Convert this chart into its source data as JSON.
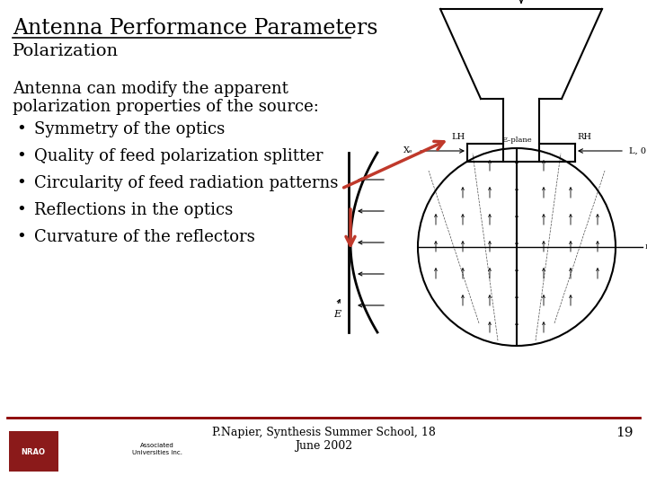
{
  "title": "Antenna Performance Parameters",
  "subtitle": "Polarization",
  "body_line1": "Antenna can modify the apparent",
  "body_line2": "polarization properties of the source:",
  "bullets": [
    "Symmetry of the optics",
    "Quality of feed polarization splitter",
    "Circularity of feed radiation patterns",
    "Reflections in the optics",
    "Curvature of the reflectors"
  ],
  "footer_text": "P.Napier, Synthesis Summer School, 18\nJune 2002",
  "page_number": "19",
  "bg_color": "#ffffff",
  "text_color": "#000000",
  "footer_line_color": "#8b0000",
  "arrow_color": "#c0392b",
  "title_fontsize": 17,
  "subtitle_fontsize": 14,
  "body_fontsize": 13,
  "bullet_fontsize": 13,
  "footer_fontsize": 9
}
